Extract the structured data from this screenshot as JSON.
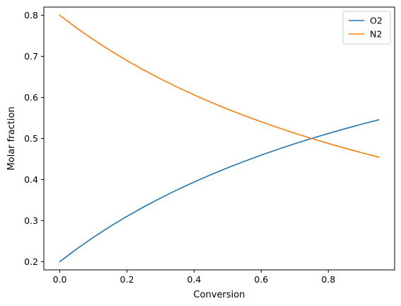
{
  "chart_data": {
    "type": "line",
    "title": "",
    "xlabel": "Conversion",
    "ylabel": "Molar fraction",
    "xlim": [
      -0.0475,
      0.9975
    ],
    "ylim": [
      0.18,
      0.82
    ],
    "xticks": [
      0.0,
      0.2,
      0.4,
      0.6,
      0.8
    ],
    "xtick_labels": [
      "0.0",
      "0.2",
      "0.4",
      "0.6",
      "0.8"
    ],
    "yticks": [
      0.2,
      0.3,
      0.4,
      0.5,
      0.6,
      0.7,
      0.8
    ],
    "ytick_labels": [
      "0.2",
      "0.3",
      "0.4",
      "0.5",
      "0.6",
      "0.7",
      "0.8"
    ],
    "grid": false,
    "legend": "top-right",
    "x": [
      0.0,
      0.05,
      0.1,
      0.15,
      0.2,
      0.25,
      0.3,
      0.35,
      0.4,
      0.45,
      0.5,
      0.55,
      0.6,
      0.65,
      0.7,
      0.75,
      0.8,
      0.85,
      0.9,
      0.95
    ],
    "series": [
      {
        "name": "O2",
        "color": "#1f77b4",
        "values": [
          0.2,
          0.2308,
          0.2593,
          0.2857,
          0.3103,
          0.3333,
          0.3548,
          0.375,
          0.3939,
          0.4118,
          0.4286,
          0.4444,
          0.4595,
          0.4737,
          0.4872,
          0.5,
          0.5122,
          0.5238,
          0.5349,
          0.5455
        ]
      },
      {
        "name": "N2",
        "color": "#ff7f0e",
        "values": [
          0.8,
          0.7692,
          0.7407,
          0.7143,
          0.6897,
          0.6667,
          0.6452,
          0.625,
          0.6061,
          0.5882,
          0.5714,
          0.5556,
          0.5405,
          0.5263,
          0.5128,
          0.5,
          0.4878,
          0.4762,
          0.4651,
          0.4545
        ]
      }
    ]
  }
}
